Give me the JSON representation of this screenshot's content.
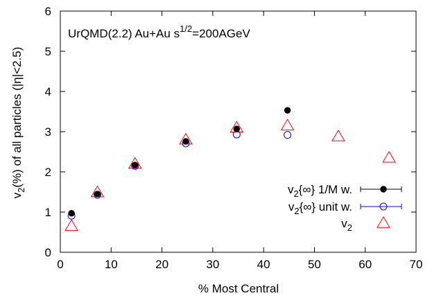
{
  "chart_data": {
    "type": "scatter",
    "title": "",
    "annotation": {
      "prefix": "UrQMD(2.2) Au+Au s",
      "superscript": "1/2",
      "suffix": "=200AGeV"
    },
    "xlabel": "% Most Central",
    "ylabel": {
      "main": "v",
      "sub": "2",
      "rest": "(%) of all particles (|η|<2.5)"
    },
    "xlim": [
      0,
      70
    ],
    "ylim": [
      0,
      6
    ],
    "xticks": [
      0,
      10,
      20,
      30,
      40,
      50,
      60,
      70
    ],
    "yticks": [
      0,
      1,
      2,
      3,
      4,
      5,
      6
    ],
    "zero_line": true,
    "grid": false,
    "legend_position": "bottom-right",
    "series": [
      {
        "legend": {
          "main": "v",
          "sub": "2",
          "rest": "{∞} 1/M w."
        },
        "marker": "filled-circle",
        "color": "#000000",
        "x": [
          2.2,
          7.3,
          14.7,
          24.7,
          34.7,
          44.7
        ],
        "y": [
          0.97,
          1.45,
          2.17,
          2.76,
          3.07,
          3.53
        ]
      },
      {
        "legend": {
          "main": "v",
          "sub": "2",
          "rest": "{∞} unit w."
        },
        "marker": "open-circle",
        "color": "#0000ff",
        "x": [
          2.2,
          7.3,
          14.7,
          24.7,
          34.7,
          44.7
        ],
        "y": [
          0.91,
          1.43,
          2.15,
          2.71,
          2.93,
          2.92
        ]
      },
      {
        "legend": {
          "main": "v",
          "sub": "2",
          "rest": ""
        },
        "marker": "open-triangle",
        "color": "#ff0000",
        "x": [
          2.2,
          7.3,
          14.7,
          24.7,
          34.7,
          44.7,
          54.7,
          64.7
        ],
        "y": [
          0.65,
          1.49,
          2.2,
          2.8,
          3.1,
          3.15,
          2.88,
          2.35
        ]
      }
    ]
  }
}
